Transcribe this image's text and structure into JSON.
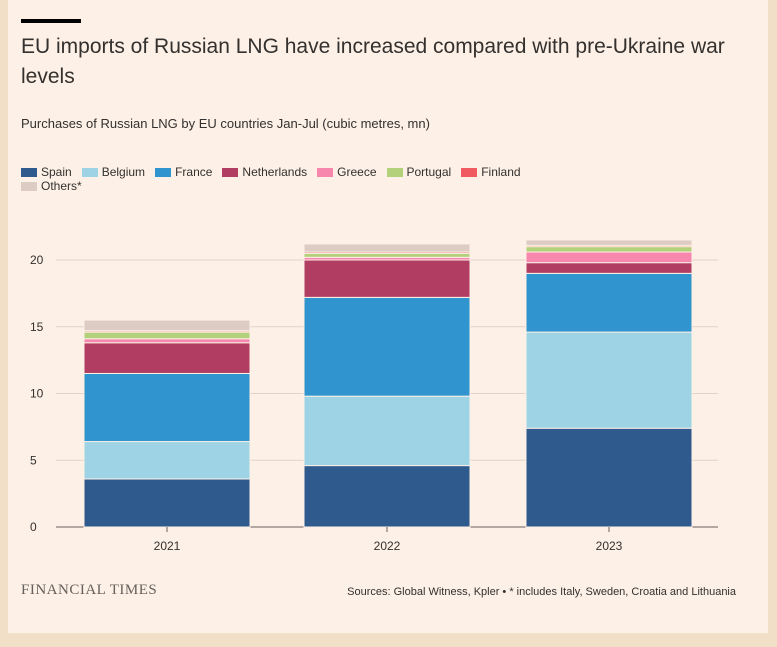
{
  "header": {
    "title": "EU imports of Russian LNG have increased compared with pre-Ukraine war levels",
    "subtitle": "Purchases of Russian LNG by EU countries Jan-Jul (cubic metres, mn)"
  },
  "footer": {
    "brand": "FINANCIAL TIMES",
    "sources": "Sources: Global Witness, Kpler • * includes Italy, Sweden, Croatia and Lithuania"
  },
  "legend": [
    {
      "label": "Spain",
      "color": "#2f5a8e"
    },
    {
      "label": "Belgium",
      "color": "#9dd3e4"
    },
    {
      "label": "France",
      "color": "#3094cf"
    },
    {
      "label": "Netherlands",
      "color": "#b13d63"
    },
    {
      "label": "Greece",
      "color": "#f887ad"
    },
    {
      "label": "Portugal",
      "color": "#b3d07b"
    },
    {
      "label": "Finland",
      "color": "#f05b61"
    },
    {
      "label": "Others*",
      "color": "#dcccc3"
    }
  ],
  "chart_data": {
    "type": "bar",
    "stacked": true,
    "categories": [
      "2021",
      "2022",
      "2023"
    ],
    "ylim": [
      0,
      22
    ],
    "yticks": [
      0,
      5,
      10,
      15,
      20
    ],
    "grid": true,
    "series": [
      {
        "name": "Spain",
        "color": "#2f5a8e",
        "values": [
          3.6,
          4.6,
          7.4
        ]
      },
      {
        "name": "Belgium",
        "color": "#9dd3e4",
        "values": [
          2.8,
          5.2,
          7.2
        ]
      },
      {
        "name": "France",
        "color": "#3094cf",
        "values": [
          5.1,
          7.4,
          4.4
        ]
      },
      {
        "name": "Netherlands",
        "color": "#b13d63",
        "values": [
          2.3,
          2.8,
          0.8
        ]
      },
      {
        "name": "Greece",
        "color": "#f887ad",
        "values": [
          0.3,
          0.2,
          0.8
        ]
      },
      {
        "name": "Portugal",
        "color": "#b3d07b",
        "values": [
          0.5,
          0.3,
          0.4
        ]
      },
      {
        "name": "Finland",
        "color": "#f05b61",
        "values": [
          0.1,
          0.1,
          0.1
        ]
      },
      {
        "name": "Others*",
        "color": "#dcccc3",
        "values": [
          0.8,
          0.6,
          0.4
        ]
      }
    ]
  }
}
